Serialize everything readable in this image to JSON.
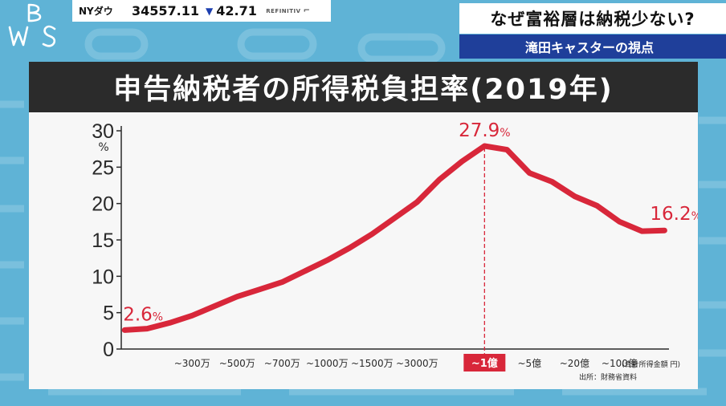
{
  "ticker": {
    "index_name": "NYダウ",
    "value": "34557.11",
    "direction": "▼",
    "change": "42.71",
    "source": "REFINITIV"
  },
  "headline": "なぜ富裕層は納税少ない?",
  "subheadline": "滝田キャスターの視点",
  "colors": {
    "line": "#d8273a",
    "highlight_bg": "#d8273a",
    "title_bg": "#2b2b2b",
    "subhead_bg": "#1f3f9a"
  },
  "chart_data": {
    "type": "line",
    "title": "申告納税者の所得税負担率(2019年)",
    "y_unit": "%",
    "ylim": [
      0,
      30
    ],
    "yticks": [
      "0",
      "5",
      "10",
      "15",
      "20",
      "25",
      "30"
    ],
    "x_unit_note": "(合計所得金額 円)",
    "source_note": "出所：財務省資料",
    "x_tick_labels": [
      {
        "text": "~300万",
        "x": 4
      },
      {
        "text": "~500万",
        "x": 6
      },
      {
        "text": "~700万",
        "x": 8
      },
      {
        "text": "~1000万",
        "x": 10
      },
      {
        "text": "~1500万",
        "x": 12
      },
      {
        "text": "~3000万",
        "x": 14
      },
      {
        "text": "~1億",
        "x": 17,
        "highlight": true
      },
      {
        "text": "~5億",
        "x": 19
      },
      {
        "text": "~20億",
        "x": 21
      },
      {
        "text": "~100億",
        "x": 23
      }
    ],
    "x_range": [
      0.85,
      25.2
    ],
    "series": [
      {
        "values": [
          [
            1,
            2.6
          ],
          [
            2,
            2.8
          ],
          [
            3,
            3.6
          ],
          [
            4,
            4.6
          ],
          [
            5,
            5.9
          ],
          [
            6,
            7.2
          ],
          [
            7,
            8.2
          ],
          [
            8,
            9.2
          ],
          [
            9,
            10.7
          ],
          [
            10,
            12.2
          ],
          [
            11,
            13.9
          ],
          [
            12,
            15.8
          ],
          [
            13,
            18.0
          ],
          [
            14,
            20.2
          ],
          [
            15,
            23.3
          ],
          [
            16,
            25.8
          ],
          [
            17,
            27.9
          ],
          [
            18,
            27.4
          ],
          [
            19,
            24.2
          ],
          [
            20,
            23.0
          ],
          [
            21,
            21.0
          ],
          [
            22,
            19.7
          ],
          [
            23,
            17.5
          ],
          [
            24,
            16.2
          ],
          [
            25,
            16.3
          ]
        ]
      }
    ],
    "annotations": [
      {
        "text": "2.6",
        "unit": "%",
        "x": 1,
        "y": 2.6
      },
      {
        "text": "27.9",
        "unit": "%",
        "x": 17,
        "y": 27.9,
        "dashed": true
      },
      {
        "text": "16.2",
        "unit": "%",
        "x": 24,
        "y": 16.2
      }
    ]
  }
}
